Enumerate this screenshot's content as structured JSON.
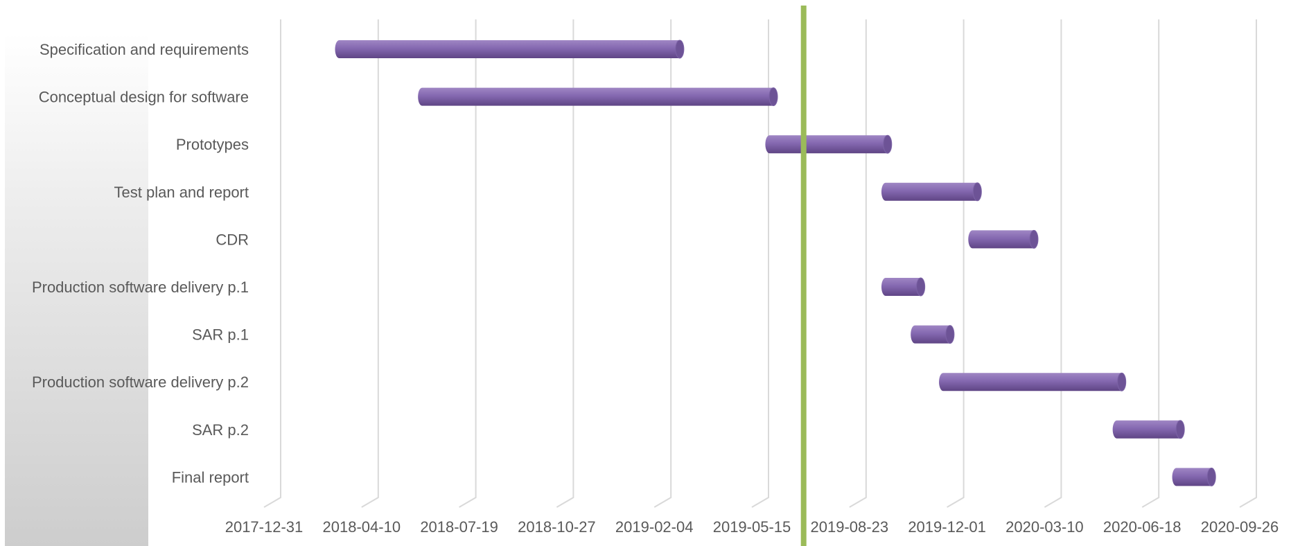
{
  "chart_data": {
    "type": "bar",
    "orientation": "horizontal",
    "subtype": "gantt",
    "title": "",
    "xlabel": "",
    "ylabel": "",
    "x_ticks": [
      "2017-12-31",
      "2018-04-10",
      "2018-07-19",
      "2018-10-27",
      "2019-02-04",
      "2019-05-15",
      "2019-08-23",
      "2019-12-01",
      "2020-03-10",
      "2020-06-18",
      "2020-09-26"
    ],
    "xlim": [
      "2017-12-31",
      "2020-09-26"
    ],
    "grid": true,
    "legend": "none",
    "tasks": [
      {
        "label": "Specification and requirements",
        "start": "2018-03-01",
        "end": "2019-02-13"
      },
      {
        "label": "Conceptual design for software",
        "start": "2018-05-25",
        "end": "2019-05-20"
      },
      {
        "label": "Prototypes",
        "start": "2019-05-16",
        "end": "2019-09-14"
      },
      {
        "label": "Test plan and report",
        "start": "2019-09-12",
        "end": "2019-12-15"
      },
      {
        "label": "CDR",
        "start": "2019-12-10",
        "end": "2020-02-11"
      },
      {
        "label": "Production software delivery p.1",
        "start": "2019-09-12",
        "end": "2019-10-18"
      },
      {
        "label": "SAR p.1",
        "start": "2019-10-12",
        "end": "2019-11-17"
      },
      {
        "label": "Production software delivery p.2",
        "start": "2019-11-10",
        "end": "2020-05-11"
      },
      {
        "label": "SAR p.2",
        "start": "2020-05-06",
        "end": "2020-07-10"
      },
      {
        "label": "Final report",
        "start": "2020-07-06",
        "end": "2020-08-11"
      }
    ],
    "today_marker": "2019-06-20",
    "colors": {
      "bar_top": "#9f86c4",
      "bar_mid": "#8468b0",
      "bar_bottom": "#5f4585",
      "bar_cap": "#6d5396",
      "today_line": "#9bbb59",
      "grid": "#d9d9d9",
      "text": "#595959"
    }
  }
}
